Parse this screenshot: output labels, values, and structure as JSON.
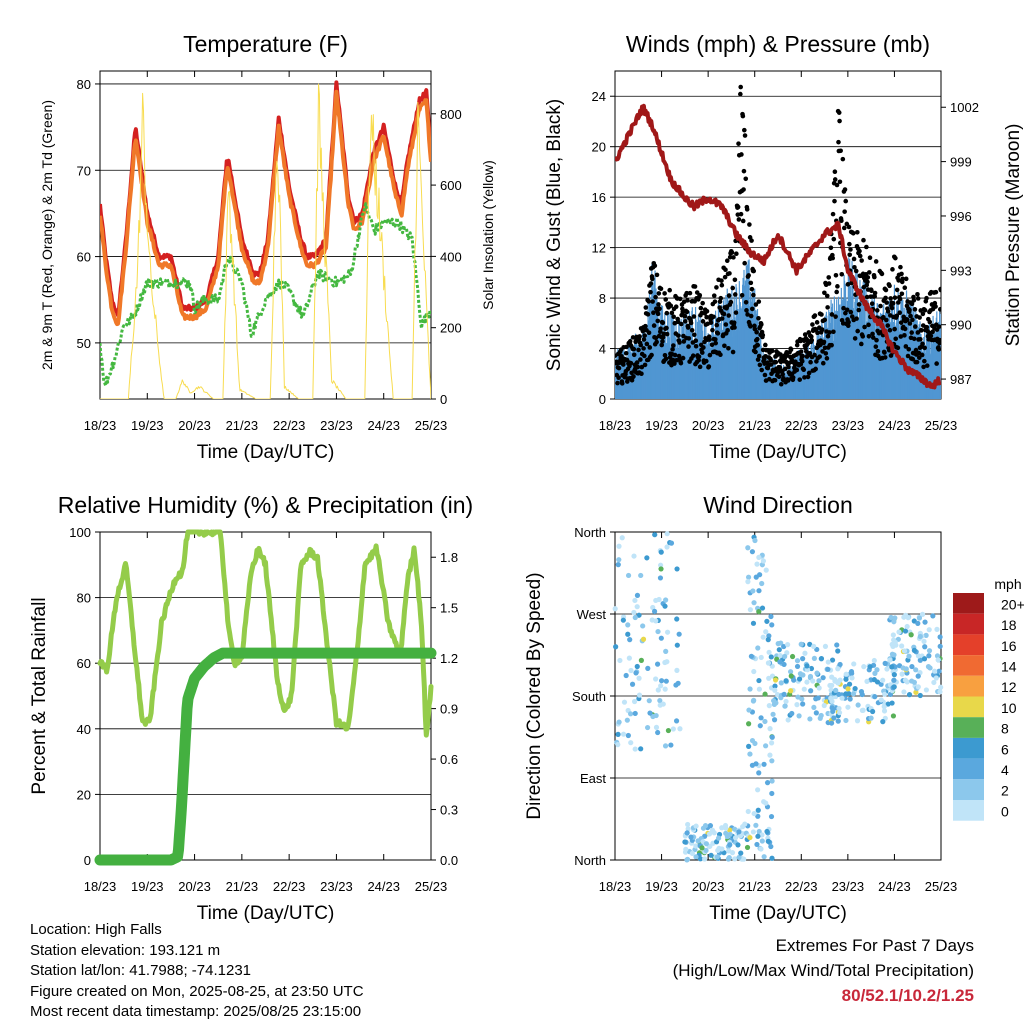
{
  "colors": {
    "temp2m": "#d42020",
    "temp9m": "#f07828",
    "dewpoint": "#44b840",
    "solar": "#f8dc50",
    "wind": "#5096d2",
    "gust": "#000000",
    "pressure": "#a01818",
    "rh": "#94cc4a",
    "precip": "#44b040"
  },
  "time_ticks": [
    "18/23",
    "19/23",
    "20/23",
    "21/23",
    "22/23",
    "23/23",
    "24/23",
    "25/23"
  ],
  "chart_data": [
    {
      "id": "temperature",
      "type": "line",
      "title": "Temperature (F)",
      "xlabel": "Time (Day/UTC)",
      "ylabel": "2m & 9m T (Red, Orange) & 2m Td (Green)",
      "y2label": "Solar Insolation (Yellow)",
      "x_range_days": [
        0,
        7
      ],
      "ylim": [
        43.5,
        81.5
      ],
      "y_ticks": [
        50,
        60,
        70,
        80
      ],
      "y2lim": [
        0,
        920
      ],
      "y2_ticks": [
        0,
        200,
        400,
        600,
        800
      ],
      "grid": "horizontal",
      "series": [
        {
          "key": "temp2m",
          "x": [
            0,
            0.12,
            0.25,
            0.38,
            0.55,
            0.75,
            1.0,
            1.25,
            1.5,
            1.75,
            2.0,
            2.25,
            2.5,
            2.68,
            2.72,
            3.0,
            3.25,
            3.38,
            3.55,
            3.78,
            4.0,
            4.25,
            4.38,
            4.55,
            4.78,
            5.0,
            5.25,
            5.38,
            5.55,
            5.78,
            6.0,
            6.25,
            6.38,
            6.5,
            6.75,
            6.9,
            7.0
          ],
          "y": [
            66,
            60,
            55,
            53,
            62,
            75,
            65,
            60,
            60,
            54,
            54,
            55,
            60,
            71,
            71,
            62,
            58,
            58,
            62,
            76,
            68,
            62,
            60,
            60,
            62,
            80,
            67,
            64,
            65,
            72,
            75,
            68,
            66,
            71,
            78,
            79,
            72
          ]
        },
        {
          "key": "temp9m",
          "x": [
            0,
            0.12,
            0.25,
            0.38,
            0.55,
            0.75,
            1.0,
            1.25,
            1.5,
            1.75,
            2.0,
            2.25,
            2.5,
            2.68,
            2.72,
            3.0,
            3.25,
            3.38,
            3.55,
            3.78,
            4.0,
            4.25,
            4.38,
            4.55,
            4.78,
            5.0,
            5.25,
            5.38,
            5.55,
            5.78,
            6.0,
            6.25,
            6.38,
            6.5,
            6.75,
            6.9,
            7.0
          ],
          "y": [
            65,
            59,
            54,
            52,
            61,
            74,
            64,
            59,
            59,
            53,
            53,
            54,
            59,
            70,
            70,
            61,
            57,
            57,
            61,
            75,
            67,
            61,
            59,
            59,
            61,
            79,
            66,
            63,
            64,
            71,
            74,
            67,
            65,
            70,
            77,
            78,
            71
          ]
        },
        {
          "key": "dewpoint",
          "x": [
            0,
            0.1,
            0.3,
            0.5,
            0.7,
            1.0,
            1.3,
            1.6,
            1.9,
            2.0,
            2.2,
            2.5,
            2.7,
            3.0,
            3.2,
            3.5,
            3.8,
            4.0,
            4.3,
            4.6,
            5.0,
            5.3,
            5.6,
            5.8,
            6.0,
            6.3,
            6.6,
            6.8,
            7.0
          ],
          "y": [
            50,
            45,
            48,
            52,
            53,
            57,
            57,
            57,
            57,
            54,
            55,
            55,
            60,
            57,
            51,
            55,
            57,
            56,
            53,
            58,
            57,
            58,
            66,
            63,
            64,
            64,
            62,
            52,
            54
          ]
        },
        {
          "key": "solar",
          "x": [
            0.6,
            0.8,
            0.9,
            1.05,
            1.35,
            1.6,
            1.75,
            1.9,
            2.1,
            2.4,
            2.6,
            2.72,
            2.95,
            3.3,
            3.6,
            3.75,
            3.9,
            4.2,
            4.5,
            4.62,
            4.9,
            5.2,
            5.6,
            5.72,
            5.9,
            6.2,
            6.6,
            6.72,
            6.9,
            7.0
          ],
          "y": [
            0,
            420,
            900,
            420,
            0,
            0,
            60,
            20,
            40,
            0,
            0,
            700,
            30,
            0,
            0,
            900,
            40,
            0,
            0,
            920,
            60,
            0,
            0,
            900,
            600,
            0,
            0,
            900,
            300,
            0
          ]
        }
      ]
    },
    {
      "id": "winds",
      "type": "scatter",
      "title": "Winds (mph) & Pressure (mb)",
      "xlabel": "Time (Day/UTC)",
      "ylabel": "Sonic Wind & Gust (Blue, Black)",
      "y2label": "Station Pressure (Maroon)",
      "x_range_days": [
        0,
        7
      ],
      "ylim": [
        0,
        26
      ],
      "y_ticks": [
        0,
        4,
        8,
        12,
        16,
        20,
        24
      ],
      "y2lim": [
        985.9,
        1004
      ],
      "y2_ticks": [
        987,
        990,
        993,
        996,
        999,
        1002
      ],
      "grid": "horizontal",
      "wind_mean": {
        "x": [
          0,
          0.3,
          0.6,
          0.8,
          1.0,
          1.4,
          1.7,
          2.0,
          2.3,
          2.6,
          2.9,
          3.2,
          3.6,
          3.9,
          4.2,
          4.6,
          5.0,
          5.4,
          5.7,
          6.0,
          6.3,
          6.6,
          7.0
        ],
        "y": [
          2,
          2.5,
          3,
          6,
          4,
          3.5,
          4,
          3,
          4.5,
          5,
          6,
          2,
          1.5,
          2,
          2.5,
          4,
          6,
          5,
          4,
          5,
          4.5,
          3,
          4
        ]
      },
      "gust": {
        "x": [
          0,
          0.3,
          0.6,
          0.8,
          1.0,
          1.4,
          1.7,
          2.0,
          2.3,
          2.6,
          2.7,
          2.9,
          3.2,
          3.6,
          3.9,
          4.2,
          4.6,
          4.8,
          5.0,
          5.4,
          5.7,
          6.0,
          6.3,
          6.6,
          7.0
        ],
        "y": [
          3,
          4,
          5,
          10,
          8,
          7,
          8,
          6,
          9,
          11,
          24,
          12,
          4,
          3,
          4,
          5,
          9,
          21,
          12,
          11,
          9,
          10,
          8,
          7,
          8
        ]
      },
      "pressure": {
        "x": [
          0,
          0.2,
          0.4,
          0.6,
          0.8,
          1.0,
          1.2,
          1.5,
          1.7,
          2.0,
          2.3,
          2.6,
          2.9,
          3.2,
          3.5,
          3.7,
          3.9,
          4.2,
          4.5,
          4.8,
          5.0,
          5.2,
          5.4,
          5.7,
          6.0,
          6.3,
          6.6,
          6.8,
          7.0
        ],
        "y": [
          999,
          1000,
          1001,
          1002,
          1001,
          999.5,
          998,
          997,
          996.5,
          997,
          996.5,
          995,
          994,
          993.5,
          995,
          994,
          993,
          994,
          995,
          995.5,
          993,
          992,
          991,
          990,
          988.5,
          987.5,
          987,
          986.6,
          987
        ]
      }
    },
    {
      "id": "humidity",
      "type": "line",
      "title": "Relative Humidity (%) & Precipitation (in)",
      "xlabel": "Time (Day/UTC)",
      "ylabel": "Percent & Total Rainfall",
      "x_range_days": [
        0,
        7
      ],
      "ylim": [
        0,
        100
      ],
      "y_ticks": [
        0,
        20,
        40,
        60,
        80,
        100
      ],
      "y2lim": [
        0,
        1.95
      ],
      "y2_ticks": [
        "0.0",
        "0.3",
        "0.6",
        "0.9",
        "1.2",
        "1.5",
        "1.8"
      ],
      "grid": "horizontal",
      "series": [
        {
          "key": "rh",
          "x": [
            0,
            0.15,
            0.35,
            0.55,
            0.75,
            0.9,
            1.05,
            1.3,
            1.5,
            1.6,
            1.75,
            1.85,
            2.0,
            2.3,
            2.55,
            2.72,
            2.85,
            3.0,
            3.2,
            3.35,
            3.5,
            3.75,
            3.9,
            4.05,
            4.25,
            4.45,
            4.6,
            4.85,
            5.0,
            5.25,
            5.45,
            5.6,
            5.85,
            6.1,
            6.35,
            6.5,
            6.65,
            6.8,
            6.9,
            7.0
          ],
          "y": [
            60,
            58,
            80,
            90,
            62,
            42,
            42,
            72,
            82,
            86,
            88,
            100,
            100,
            100,
            100,
            70,
            60,
            62,
            88,
            95,
            90,
            55,
            45,
            50,
            90,
            94,
            92,
            60,
            42,
            40,
            65,
            90,
            95,
            72,
            62,
            85,
            95,
            72,
            38,
            52
          ]
        },
        {
          "key": "precip",
          "x": [
            0,
            1.5,
            1.65,
            1.72,
            1.78,
            1.85,
            2.0,
            2.2,
            2.4,
            2.6,
            3.0,
            4.0,
            5.0,
            6.0,
            7.0
          ],
          "y": [
            0,
            0,
            0.02,
            0.3,
            0.6,
            0.95,
            1.08,
            1.15,
            1.2,
            1.23,
            1.23,
            1.23,
            1.23,
            1.23,
            1.23
          ]
        }
      ]
    },
    {
      "id": "wind_direction",
      "type": "scatter",
      "title": "Wind Direction",
      "xlabel": "Time (Day/UTC)",
      "ylabel": "Direction (Colored By Speed)",
      "x_range_days": [
        0,
        7
      ],
      "ylim_deg": [
        0,
        360
      ],
      "y_ticks": [
        "North",
        "East",
        "South",
        "West",
        "North"
      ],
      "grid": "horizontal",
      "clusters": [
        {
          "x": [
            0,
            1.4
          ],
          "y": [
            120,
            360
          ]
        },
        {
          "x": [
            1.5,
            2.85
          ],
          "y": [
            0,
            40
          ]
        },
        {
          "x": [
            2.85,
            3.4
          ],
          "y": [
            0,
            360
          ]
        },
        {
          "x": [
            3.4,
            4.8
          ],
          "y": [
            150,
            240
          ]
        },
        {
          "x": [
            4.6,
            6.0
          ],
          "y": [
            150,
            220
          ]
        },
        {
          "x": [
            5.9,
            7.0
          ],
          "y": [
            180,
            270
          ]
        }
      ],
      "legend": {
        "title": "mph",
        "labels": [
          "20+",
          "18",
          "16",
          "14",
          "12",
          "10",
          "8",
          "6",
          "4",
          "2",
          "0"
        ],
        "colors": [
          "#9e1a1a",
          "#c82626",
          "#e4402a",
          "#f06a32",
          "#f8a040",
          "#e8d84a",
          "#58b058",
          "#3c9ad0",
          "#5aa8de",
          "#8cc8ec",
          "#c0e4f8"
        ]
      }
    }
  ],
  "info": {
    "location": "Location: High Falls",
    "elevation": "Station elevation: 193.121 m",
    "latlon": "Station lat/lon: 41.7988; -74.1231",
    "created": "Figure created on Mon, 2025-08-25, at 23:50 UTC",
    "recent": "Most recent data timestamp: 2025/08/25 23:15:00"
  },
  "extremes": {
    "title": "Extremes For Past 7 Days",
    "subtitle": "(High/Low/Max Wind/Total Precipitation)",
    "values": "80/52.1/10.2/1.25"
  }
}
